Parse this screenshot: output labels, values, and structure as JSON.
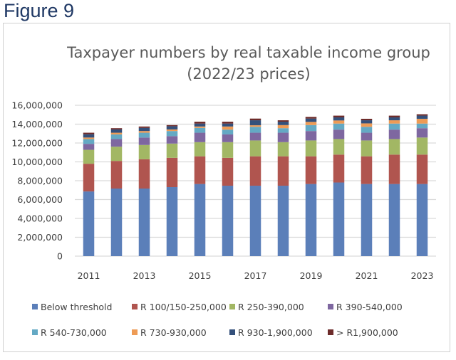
{
  "figure_label": "Figure 9",
  "chart_data": {
    "type": "bar",
    "stacked": true,
    "title": [
      "Taxpayer numbers by real taxable income group",
      "(2022/23 prices)"
    ],
    "xlabel": "",
    "ylabel": "",
    "ylim": [
      0,
      16000000
    ],
    "yticks": [
      0,
      2000000,
      4000000,
      6000000,
      8000000,
      10000000,
      12000000,
      14000000,
      16000000
    ],
    "ytick_labels": [
      "0",
      "2,000,000",
      "4,000,000",
      "6,000,000",
      "8,000,000",
      "10,000,000",
      "12,000,000",
      "14,000,000",
      "16,000,000"
    ],
    "categories": [
      "2011",
      "2012",
      "2013",
      "2014",
      "2015",
      "2016",
      "2017",
      "2018",
      "2019",
      "2020",
      "2021",
      "2022",
      "2023"
    ],
    "xtick_labels_shown": [
      "2011",
      "2013",
      "2015",
      "2017",
      "2019",
      "2021",
      "2023"
    ],
    "grid": true,
    "legend_position": "bottom",
    "series": [
      {
        "name": "Below threshold",
        "color": "#5b7fb9",
        "values": [
          6860000,
          7170000,
          7170000,
          7320000,
          7650000,
          7470000,
          7470000,
          7470000,
          7650000,
          7810000,
          7650000,
          7650000,
          7650000
        ]
      },
      {
        "name": "R 100/150-250,000",
        "color": "#b0554f",
        "values": [
          2940000,
          2930000,
          3110000,
          3110000,
          2940000,
          2960000,
          3120000,
          3120000,
          2940000,
          2960000,
          2940000,
          3120000,
          3120000
        ]
      },
      {
        "name": "R 250-390,000",
        "color": "#a2b764",
        "values": [
          1480000,
          1510000,
          1510000,
          1510000,
          1500000,
          1660000,
          1680000,
          1500000,
          1680000,
          1650000,
          1680000,
          1650000,
          1810000
        ]
      },
      {
        "name": "R 390-540,000",
        "color": "#7e67a0",
        "values": [
          630000,
          810000,
          790000,
          790000,
          1000000,
          820000,
          820000,
          1000000,
          1000000,
          1000000,
          820000,
          1000000,
          990000
        ]
      },
      {
        "name": "R 540-730,000",
        "color": "#64a9c4",
        "values": [
          510000,
          490000,
          510000,
          540000,
          510000,
          510000,
          630000,
          480000,
          630000,
          640000,
          630000,
          640000,
          490000
        ]
      },
      {
        "name": "R 730-930,000",
        "color": "#ee9b55",
        "values": [
          160000,
          180000,
          180000,
          170000,
          150000,
          330000,
          160000,
          330000,
          340000,
          330000,
          360000,
          350000,
          510000
        ]
      },
      {
        "name": "R 930-1,900,000",
        "color": "#34507b",
        "values": [
          350000,
          350000,
          330000,
          340000,
          310000,
          310000,
          530000,
          360000,
          350000,
          330000,
          330000,
          310000,
          330000
        ]
      },
      {
        "name": "> R1,900,000",
        "color": "#6d2b2a",
        "values": [
          160000,
          130000,
          150000,
          120000,
          200000,
          200000,
          180000,
          150000,
          180000,
          180000,
          160000,
          180000,
          150000
        ]
      }
    ]
  }
}
